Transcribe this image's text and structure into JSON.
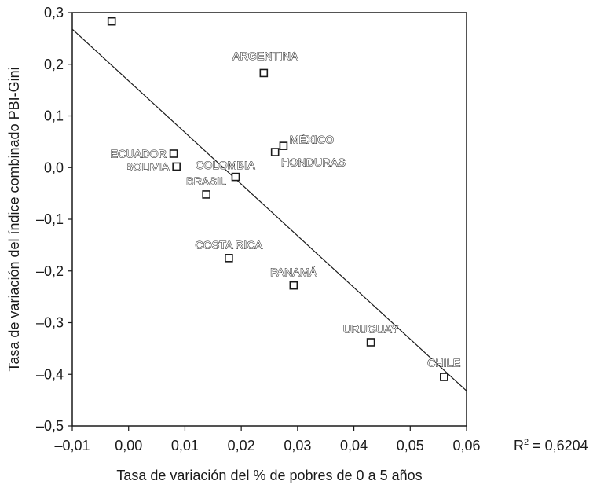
{
  "chart_data": {
    "type": "scatter",
    "xlabel": "Tasa de variación del % de pobres de 0 a 5 años",
    "ylabel": "Tasa de variación del índice combinado PBI-Gini",
    "xlim": [
      -0.01,
      0.06
    ],
    "ylim": [
      -0.5,
      0.3
    ],
    "x_ticks": [
      -0.01,
      0.0,
      0.01,
      0.02,
      0.03,
      0.04,
      0.05,
      0.06
    ],
    "x_tick_labels": [
      "–0,01",
      "0,00",
      "0,01",
      "0,02",
      "0,03",
      "0,04",
      "0,05",
      "0,06"
    ],
    "y_ticks": [
      0.3,
      0.2,
      0.1,
      0.0,
      -0.1,
      -0.2,
      -0.3,
      -0.4,
      -0.5
    ],
    "y_tick_labels": [
      "0,3",
      "0,2",
      "0,1",
      "0,0",
      "–0,1",
      "–0,2",
      "–0,3",
      "–0,4",
      "–0,5"
    ],
    "grid": false,
    "points": [
      {
        "label": "",
        "x": -0.003,
        "y": 0.283
      },
      {
        "label": "ARGENTINA",
        "x": 0.024,
        "y": 0.183
      },
      {
        "label": "MÉXICO",
        "x": 0.0275,
        "y": 0.042
      },
      {
        "label": "HONDURAS",
        "x": 0.026,
        "y": 0.03
      },
      {
        "label": "ECUADOR",
        "x": 0.008,
        "y": 0.027
      },
      {
        "label": "BOLIVIA",
        "x": 0.0085,
        "y": 0.002
      },
      {
        "label": "COLOMBIA",
        "x": 0.019,
        "y": -0.018
      },
      {
        "label": "BRASIL",
        "x": 0.0138,
        "y": -0.052
      },
      {
        "label": "COSTA RICA",
        "x": 0.0178,
        "y": -0.175
      },
      {
        "label": "PANAMÁ",
        "x": 0.0293,
        "y": -0.228
      },
      {
        "label": "URUGUAY",
        "x": 0.043,
        "y": -0.338
      },
      {
        "label": "CHILE",
        "x": 0.056,
        "y": -0.405
      }
    ],
    "trendline": {
      "x": [
        -0.01,
        0.06
      ],
      "y": [
        0.268,
        -0.432
      ]
    },
    "r2_text": "0,6204"
  }
}
